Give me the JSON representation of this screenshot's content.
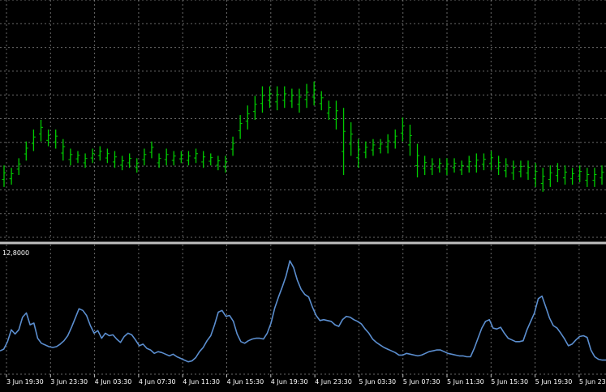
{
  "chart_data": [
    {
      "type": "bar",
      "title": "",
      "series": [
        {
          "color": "#00cc00",
          "values": [
            [
              0.22,
              0.31
            ],
            [
              0.23,
              0.3
            ],
            [
              0.27,
              0.34
            ],
            [
              0.33,
              0.41
            ],
            [
              0.37,
              0.46
            ],
            [
              0.41,
              0.5
            ],
            [
              0.39,
              0.46
            ],
            [
              0.38,
              0.46
            ],
            [
              0.33,
              0.42
            ],
            [
              0.31,
              0.38
            ],
            [
              0.32,
              0.37
            ],
            [
              0.3,
              0.36
            ],
            [
              0.32,
              0.38
            ],
            [
              0.33,
              0.39
            ],
            [
              0.32,
              0.38
            ],
            [
              0.3,
              0.37
            ],
            [
              0.29,
              0.35
            ],
            [
              0.3,
              0.36
            ],
            [
              0.28,
              0.34
            ],
            [
              0.31,
              0.38
            ],
            [
              0.34,
              0.41
            ],
            [
              0.3,
              0.36
            ],
            [
              0.31,
              0.38
            ],
            [
              0.31,
              0.37
            ],
            [
              0.32,
              0.37
            ],
            [
              0.31,
              0.37
            ],
            [
              0.32,
              0.38
            ],
            [
              0.3,
              0.37
            ],
            [
              0.31,
              0.36
            ],
            [
              0.29,
              0.35
            ],
            [
              0.28,
              0.35
            ],
            [
              0.35,
              0.43
            ],
            [
              0.42,
              0.52
            ],
            [
              0.46,
              0.56
            ],
            [
              0.5,
              0.6
            ],
            [
              0.53,
              0.64
            ],
            [
              0.55,
              0.64
            ],
            [
              0.54,
              0.64
            ],
            [
              0.55,
              0.64
            ],
            [
              0.55,
              0.63
            ],
            [
              0.53,
              0.63
            ],
            [
              0.55,
              0.65
            ],
            [
              0.56,
              0.66
            ],
            [
              0.54,
              0.62
            ],
            [
              0.5,
              0.58
            ],
            [
              0.46,
              0.58
            ],
            [
              0.27,
              0.55
            ],
            [
              0.35,
              0.49
            ],
            [
              0.3,
              0.42
            ],
            [
              0.34,
              0.41
            ],
            [
              0.35,
              0.42
            ],
            [
              0.36,
              0.42
            ],
            [
              0.36,
              0.44
            ],
            [
              0.38,
              0.46
            ],
            [
              0.41,
              0.51
            ],
            [
              0.35,
              0.48
            ],
            [
              0.26,
              0.4
            ],
            [
              0.27,
              0.35
            ],
            [
              0.27,
              0.34
            ],
            [
              0.28,
              0.34
            ],
            [
              0.27,
              0.34
            ],
            [
              0.28,
              0.34
            ],
            [
              0.27,
              0.33
            ],
            [
              0.28,
              0.35
            ],
            [
              0.28,
              0.36
            ],
            [
              0.29,
              0.36
            ],
            [
              0.29,
              0.37
            ],
            [
              0.27,
              0.35
            ],
            [
              0.26,
              0.34
            ],
            [
              0.25,
              0.33
            ],
            [
              0.26,
              0.33
            ],
            [
              0.25,
              0.33
            ],
            [
              0.22,
              0.32
            ],
            [
              0.2,
              0.3
            ],
            [
              0.22,
              0.31
            ],
            [
              0.24,
              0.32
            ],
            [
              0.23,
              0.31
            ],
            [
              0.23,
              0.3
            ],
            [
              0.24,
              0.31
            ],
            [
              0.22,
              0.3
            ],
            [
              0.22,
              0.3
            ],
            [
              0.23,
              0.31
            ]
          ]
        }
      ]
    },
    {
      "type": "line",
      "title": "",
      "label": "12,8000",
      "series": [
        {
          "color": "#5b8ecf",
          "values": [
            2.1,
            2.3,
            3.2,
            4.6,
            4.1,
            4.6,
            6.1,
            6.6,
            5.2,
            5.4,
            3.6,
            3.0,
            2.8,
            2.6,
            2.5,
            2.6,
            2.9,
            3.3,
            3.9,
            4.9,
            6.0,
            7.1,
            6.9,
            6.3,
            5.1,
            4.2,
            4.5,
            3.6,
            4.2,
            3.9,
            4.0,
            3.5,
            3.1,
            3.8,
            4.2,
            4.0,
            3.4,
            2.7,
            2.9,
            2.4,
            2.2,
            1.8,
            2.0,
            1.9,
            1.7,
            1.5,
            1.7,
            1.4,
            1.2,
            1.0,
            0.8,
            0.9,
            1.3,
            2.0,
            2.5,
            3.3,
            3.9,
            5.2,
            6.7,
            6.9,
            6.2,
            6.3,
            5.6,
            4.1,
            3.2,
            3.0,
            3.3,
            3.5,
            3.6,
            3.6,
            3.5,
            4.2,
            5.4,
            7.2,
            8.5,
            9.7,
            11.0,
            12.8,
            12.0,
            10.5,
            9.4,
            8.8,
            8.5,
            7.3,
            6.3,
            5.7,
            5.8,
            5.7,
            5.6,
            5.2,
            5.0,
            5.8,
            6.2,
            6.1,
            5.8,
            5.6,
            5.3,
            4.7,
            4.2,
            3.5,
            3.1,
            2.8,
            2.5,
            2.3,
            2.1,
            1.9,
            1.6,
            1.6,
            1.8,
            1.7,
            1.6,
            1.5,
            1.6,
            1.8,
            2.0,
            2.1,
            2.2,
            2.2,
            2.0,
            1.8,
            1.7,
            1.6,
            1.5,
            1.5,
            1.4,
            1.4,
            2.4,
            3.6,
            4.8,
            5.6,
            5.8,
            4.8,
            4.7,
            4.9,
            4.2,
            3.6,
            3.4,
            3.2,
            3.2,
            3.3,
            4.6,
            5.6,
            6.6,
            8.3,
            8.6,
            7.3,
            6.0,
            5.1,
            4.8,
            4.2,
            3.5,
            2.7,
            2.9,
            3.4,
            3.8,
            3.9,
            3.7,
            2.2,
            1.4,
            1.1,
            1.0,
            1.0
          ]
        }
      ]
    }
  ],
  "x_ticks": [
    "3 Jun 19:30",
    "3 Jun 23:30",
    "4 Jun 03:30",
    "4 Jun 07:30",
    "4 Jun 11:30",
    "4 Jun 15:30",
    "4 Jun 19:30",
    "4 Jun 23:30",
    "5 Jun 03:30",
    "5 Jun 07:30",
    "5 Jun 11:30",
    "5 Jun 15:30",
    "5 Jun 19:30",
    "5 Jun 23:30"
  ],
  "colors": {
    "background": "#000000",
    "grid": "#c0c0c0",
    "separator": "#c0c0c0",
    "text": "#ffffff"
  }
}
